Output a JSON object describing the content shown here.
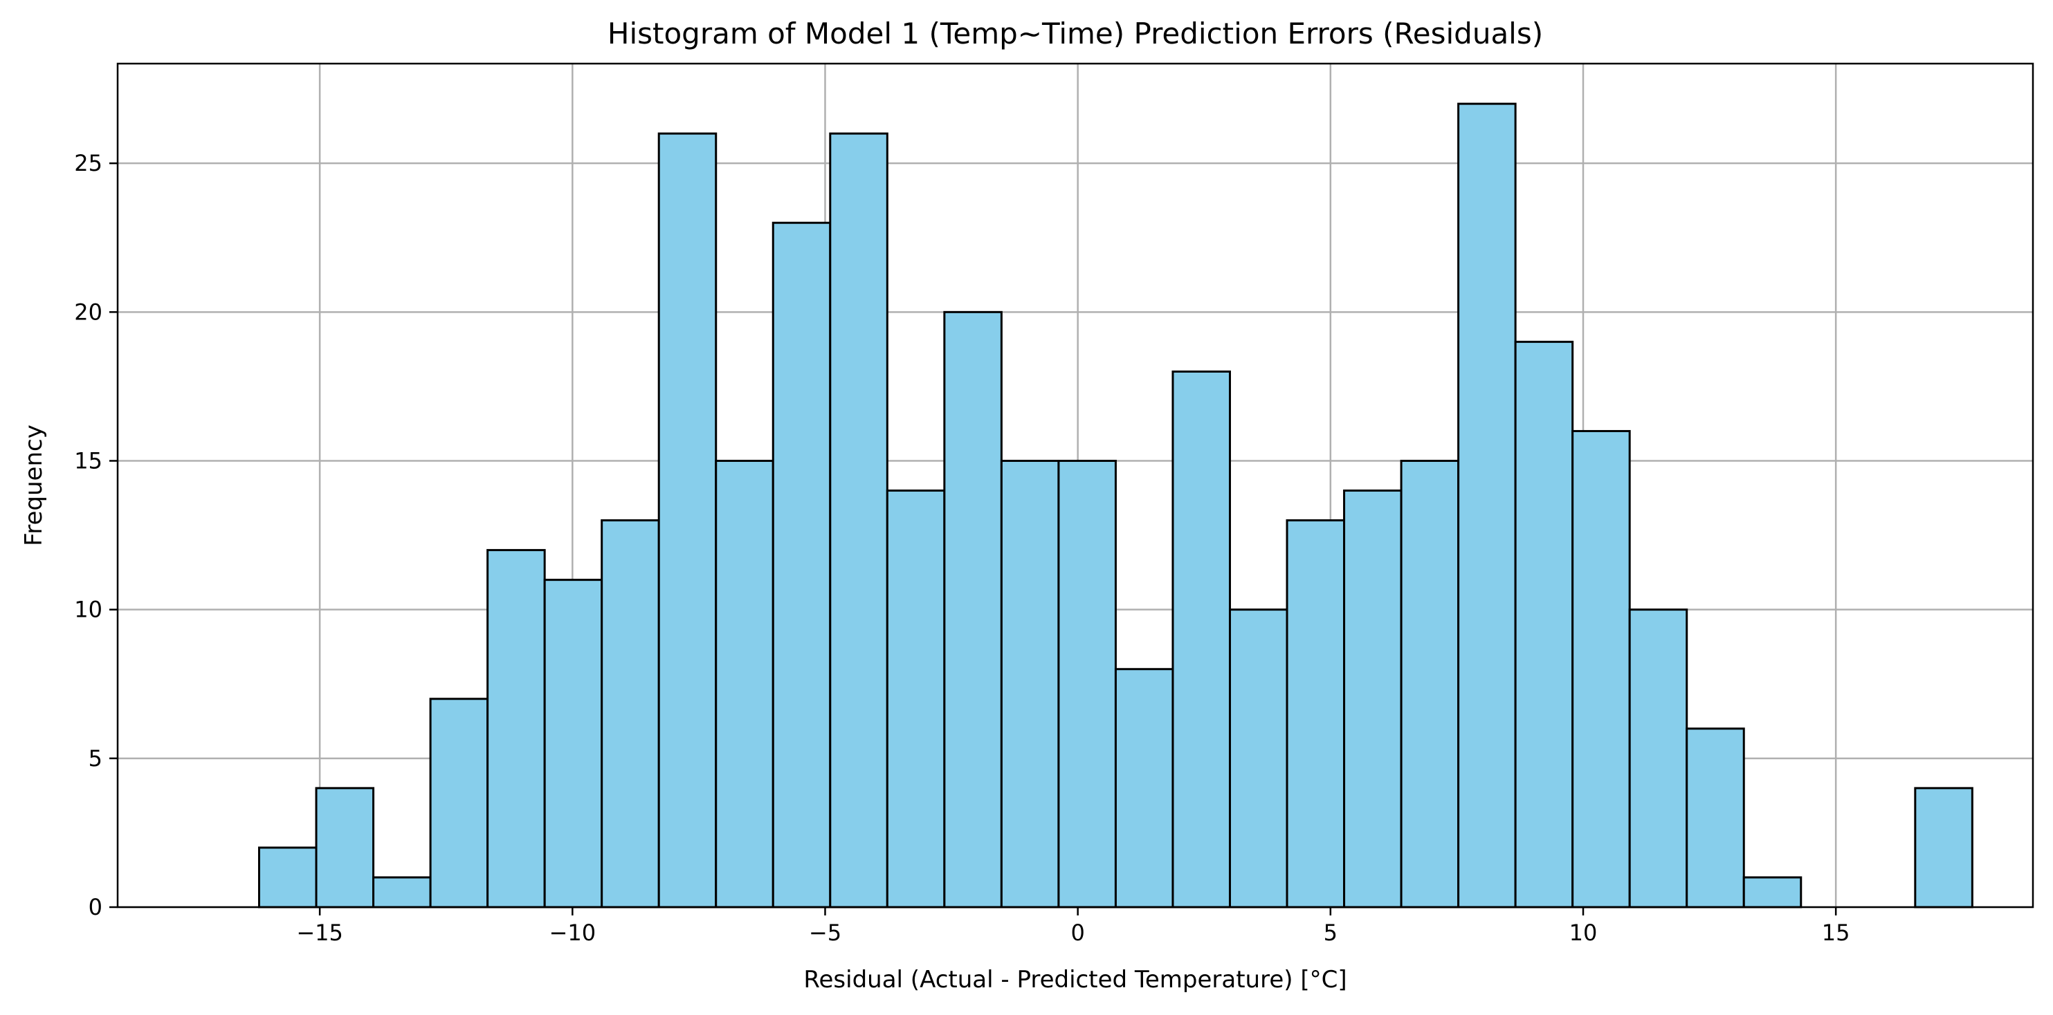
{
  "chart_data": {
    "type": "bar",
    "title": "Histogram of Model 1 (Temp~Time) Prediction Errors (Residuals)",
    "xlabel": "Residual (Actual - Predicted Temperature) [°C]",
    "ylabel": "Frequency",
    "bin_start": -16.2,
    "bin_width": 1.13,
    "values": [
      2,
      4,
      1,
      7,
      12,
      11,
      13,
      26,
      15,
      23,
      26,
      14,
      20,
      15,
      15,
      8,
      18,
      10,
      13,
      14,
      15,
      27,
      19,
      16,
      10,
      6,
      1,
      0,
      0,
      4
    ],
    "xlim": [
      -19.0,
      18.9
    ],
    "ylim": [
      0,
      28.35
    ],
    "xticks": [
      -15,
      -10,
      -5,
      0,
      5,
      10,
      15
    ],
    "xtick_labels": [
      "−15",
      "−10",
      "−5",
      "0",
      "5",
      "10",
      "15"
    ],
    "yticks": [
      0,
      5,
      10,
      15,
      20,
      25
    ],
    "ytick_labels": [
      "0",
      "5",
      "10",
      "15",
      "20",
      "25"
    ],
    "grid": true,
    "bar_color": "#87ceeb",
    "edge_color": "#000000",
    "grid_color": "#b0b0b0"
  }
}
